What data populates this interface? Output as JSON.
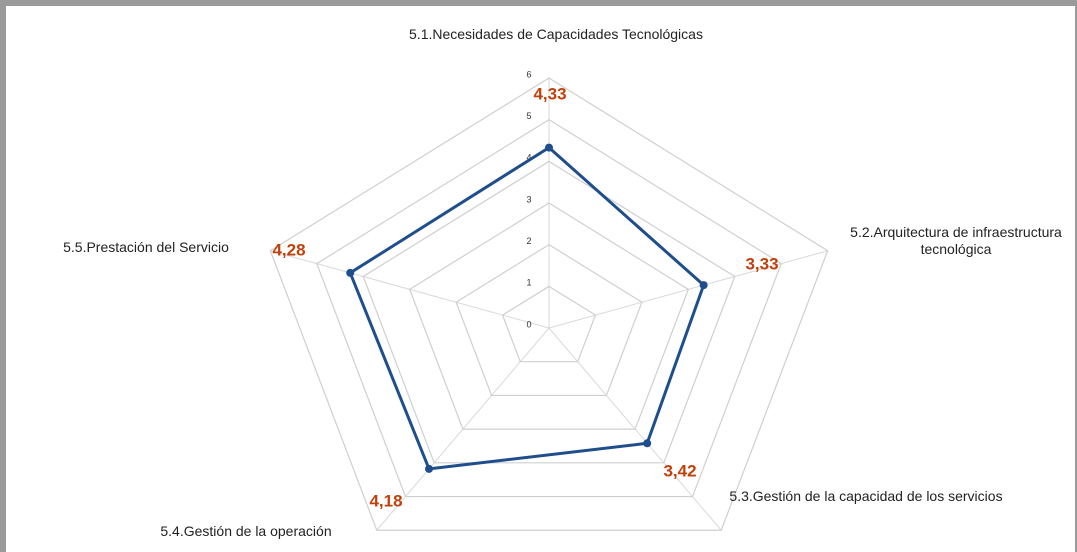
{
  "chart_data": {
    "type": "radar",
    "categories": [
      "5.1.Necesidades de Capacidades Tecnológicas",
      "5.2.Arquitectura de infraestructura tecnológica",
      "5.3.Gestión de la capacidad de los servicios",
      "5.4.Gestión de la operación",
      "5.5.Prestación del Servicio"
    ],
    "series": [
      {
        "color": "#1f4e8c",
        "values": [
          4.33,
          3.33,
          3.42,
          4.18,
          4.28
        ],
        "value_labels": [
          "4,33",
          "3,33",
          "3,42",
          "4,18",
          "4,28"
        ]
      }
    ],
    "ylim": [
      0,
      6
    ],
    "yticks": [
      0,
      1,
      2,
      3,
      4,
      5,
      6
    ],
    "grid": true
  }
}
